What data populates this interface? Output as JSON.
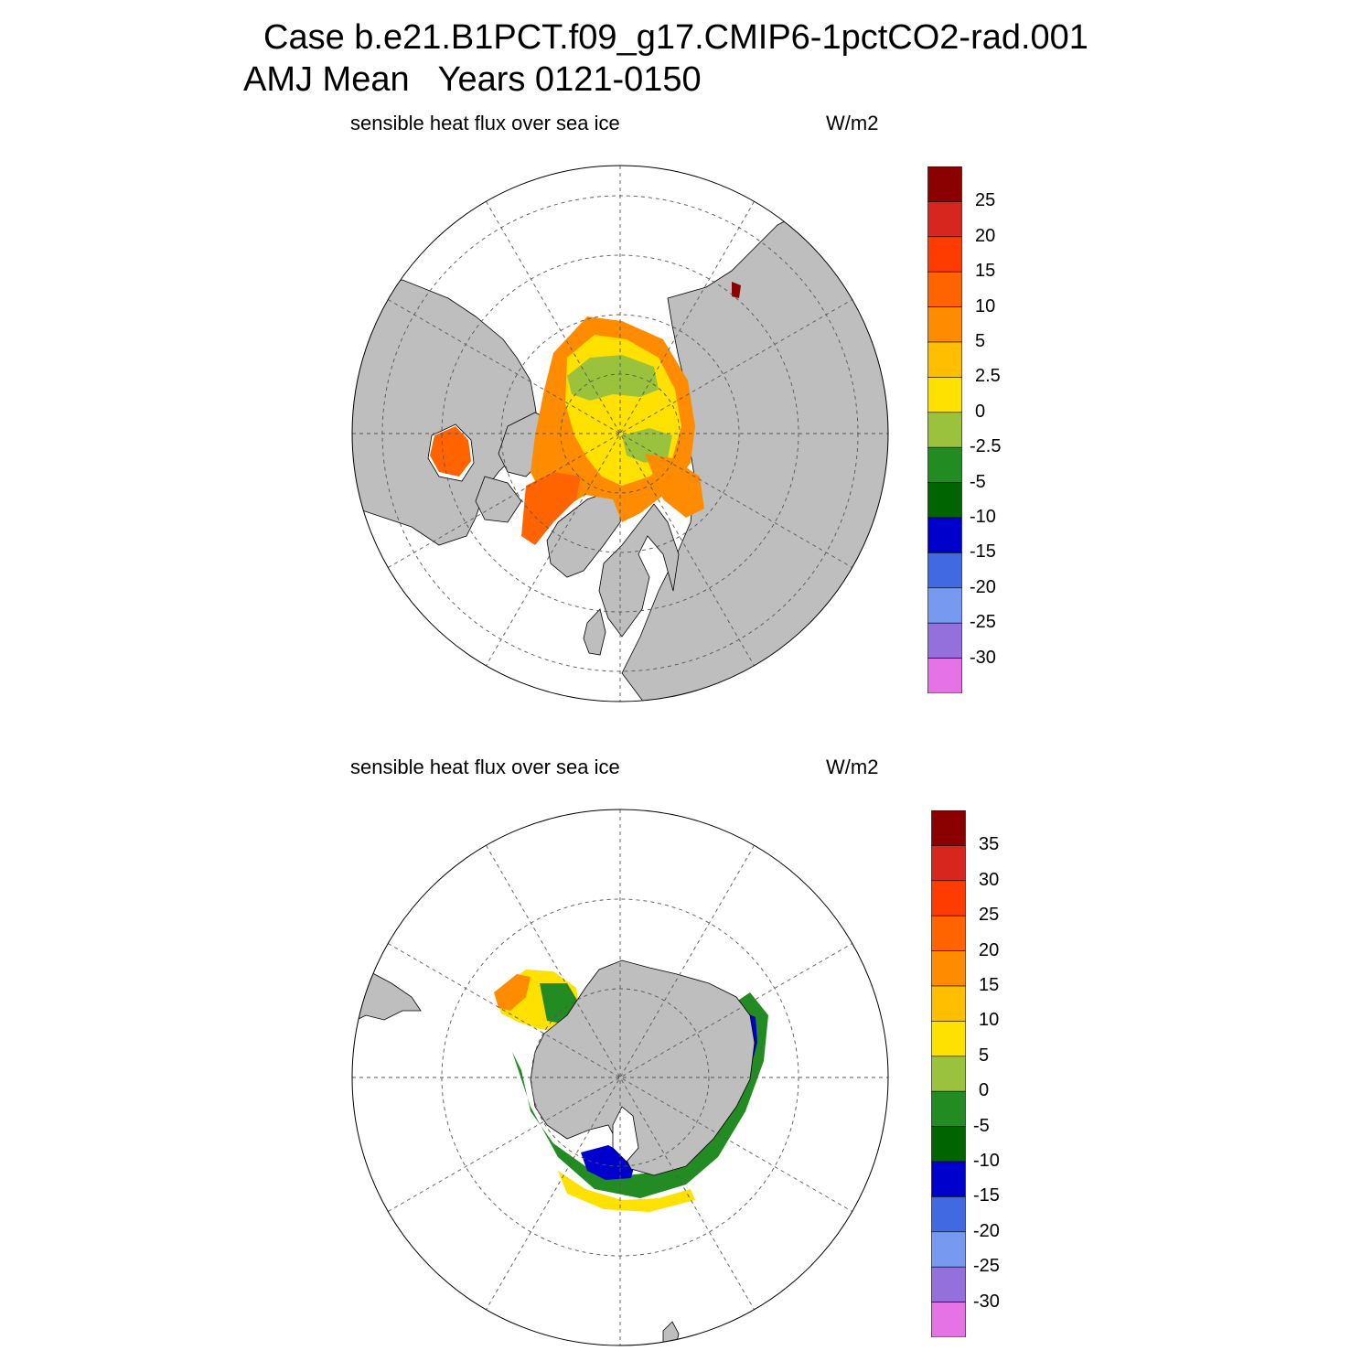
{
  "header": {
    "line1": "Case b.e21.B1PCT.f09_g17.CMIP6-1pctCO2-rad.001",
    "line2": "AMJ Mean   Years 0121-0150"
  },
  "panels": [
    {
      "id": "north",
      "title": "sensible heat flux over sea ice",
      "units": "W/m2",
      "colorbar": {
        "labels": [
          "25",
          "20",
          "15",
          "10",
          "5",
          "2.5",
          "0",
          "-2.5",
          "-5",
          "-10",
          "-15",
          "-20",
          "-25",
          "-30"
        ],
        "colors": [
          "#8b0000",
          "#d7261e",
          "#ff3c00",
          "#ff6400",
          "#ff8c00",
          "#ffbe00",
          "#ffe100",
          "#9bc23c",
          "#228b22",
          "#006400",
          "#0000cd",
          "#4169e1",
          "#7799f0",
          "#9370db",
          "#e673e6"
        ]
      }
    },
    {
      "id": "south",
      "title": "sensible heat flux over sea ice",
      "units": "W/m2",
      "colorbar": {
        "labels": [
          "35",
          "30",
          "25",
          "20",
          "15",
          "10",
          "5",
          "0",
          "-5",
          "-10",
          "-15",
          "-20",
          "-25",
          "-30"
        ],
        "colors": [
          "#8b0000",
          "#d7261e",
          "#ff3c00",
          "#ff6400",
          "#ff8c00",
          "#ffbe00",
          "#ffe100",
          "#9bc23c",
          "#228b22",
          "#006400",
          "#0000cd",
          "#4169e1",
          "#7799f0",
          "#9370db",
          "#e673e6"
        ]
      }
    }
  ],
  "colors": {
    "land": "#bebebe",
    "ocean": "#ffffff",
    "grid": "#555555"
  }
}
